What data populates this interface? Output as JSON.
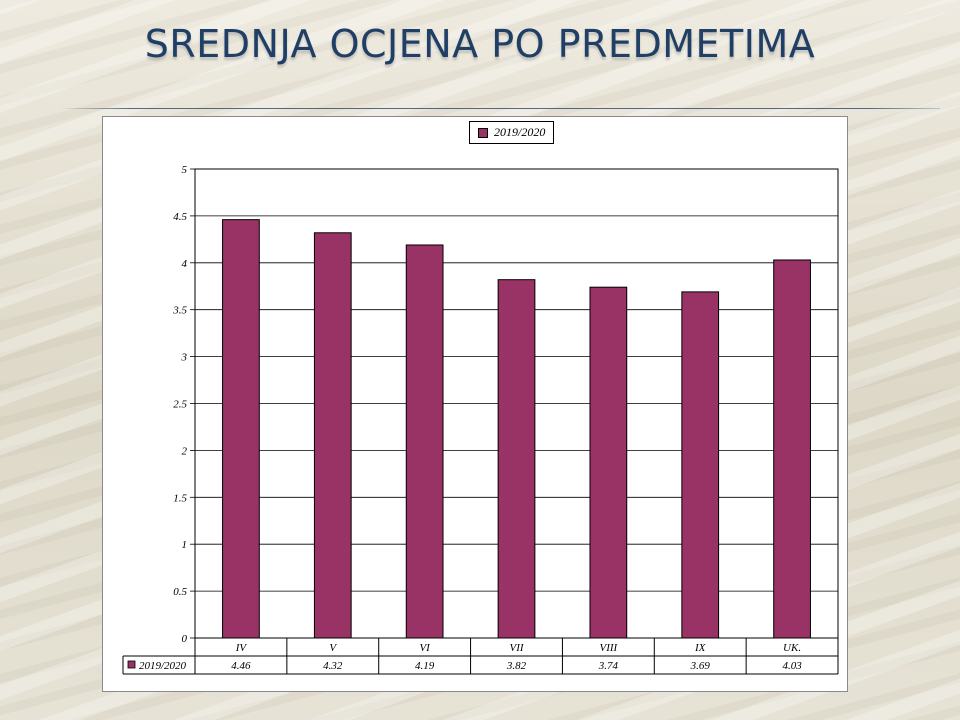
{
  "slide": {
    "title": "Srednja ocjena po predmetima"
  },
  "colors": {
    "bar_fill": "#993366",
    "title_color": "#1f3f66"
  },
  "chart_data": {
    "type": "bar",
    "categories": [
      "IV",
      "V",
      "VI",
      "VII",
      "VIII",
      "IX",
      "UK."
    ],
    "series": [
      {
        "name": "2019/2020",
        "values": [
          4.46,
          4.32,
          4.19,
          3.82,
          3.74,
          3.69,
          4.03
        ]
      }
    ],
    "value_labels": [
      "4.46",
      "4.32",
      "4.19",
      "3.82",
      "3.74",
      "3.69",
      "4.03"
    ],
    "ylim": [
      0,
      5
    ],
    "yticks": [
      "0",
      "0.5",
      "1",
      "1.5",
      "2",
      "2.5",
      "3",
      "3.5",
      "4",
      "4.5",
      "5"
    ],
    "grid": true,
    "legend_position": "top-center",
    "data_table": true
  }
}
